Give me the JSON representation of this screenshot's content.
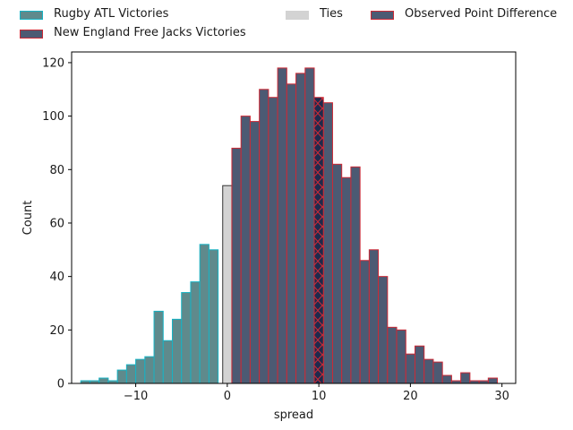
{
  "chart_data": {
    "type": "bar",
    "xlabel": "spread",
    "ylabel": "Count",
    "xlim": [
      -17,
      31.5
    ],
    "ylim": [
      0,
      124
    ],
    "xticks": [
      -10,
      0,
      10,
      20,
      30
    ],
    "xtick_labels": [
      "−10",
      "0",
      "10",
      "20",
      "30"
    ],
    "yticks": [
      0,
      20,
      40,
      60,
      80,
      100,
      120
    ],
    "ytick_labels": [
      "0",
      "20",
      "40",
      "60",
      "80",
      "100",
      "120"
    ],
    "bin_width": 1,
    "grid": false,
    "legend": "top, above plot",
    "series": [
      {
        "name": "Rugby ATL Victories",
        "fill": "#5f8a8c",
        "edge": "#17b3c4",
        "bins_left": [
          -16,
          -15,
          -14,
          -13,
          -12,
          -11,
          -10,
          -9,
          -8,
          -7,
          -6,
          -5,
          -4,
          -3,
          -2,
          -1
        ],
        "values": [
          1,
          1,
          2,
          1,
          5,
          7,
          9,
          10,
          27,
          16,
          24,
          34,
          38,
          52,
          50,
          0
        ]
      },
      {
        "name": "Ties",
        "fill": "#d3d3d3",
        "edge": "#333333",
        "bins_left": [
          -0.5
        ],
        "values": [
          74
        ]
      },
      {
        "name": "New England Free Jacks Victories",
        "fill": "#4c5a73",
        "edge": "#cc2a36",
        "bins_left": [
          0.5,
          1.5,
          2.5,
          3.5,
          4.5,
          5.5,
          6.5,
          7.5,
          8.5,
          9.5,
          10.5,
          11.5,
          12.5,
          13.5,
          14.5,
          15.5,
          16.5,
          17.5,
          18.5,
          19.5,
          20.5,
          21.5,
          22.5,
          23.5,
          24.5,
          25.5,
          26.5,
          27.5,
          28.5
        ],
        "values": [
          88,
          100,
          98,
          110,
          107,
          118,
          112,
          116,
          118,
          0,
          105,
          82,
          77,
          81,
          46,
          50,
          40,
          21,
          20,
          11,
          14,
          9,
          8,
          3,
          1,
          4,
          1,
          1,
          2
        ]
      },
      {
        "name": "Observed Point Difference",
        "fill": "#1f2a4d",
        "edge": "#cc2a36",
        "hatch": "x",
        "bins_left": [
          9.5
        ],
        "values": [
          107
        ]
      }
    ]
  },
  "legend": {
    "items": [
      {
        "label": "Rugby ATL Victories",
        "fill": "#5f8a8c",
        "edge": "#17b3c4"
      },
      {
        "label": "New England Free Jacks Victories",
        "fill": "#4c5a73",
        "edge": "#cc2a36"
      },
      {
        "label": "Ties",
        "fill": "#d3d3d3",
        "edge": "#d3d3d3"
      },
      {
        "label": "Observed Point Difference",
        "fill": "#4c5a73",
        "edge": "#cc2a36"
      }
    ]
  }
}
